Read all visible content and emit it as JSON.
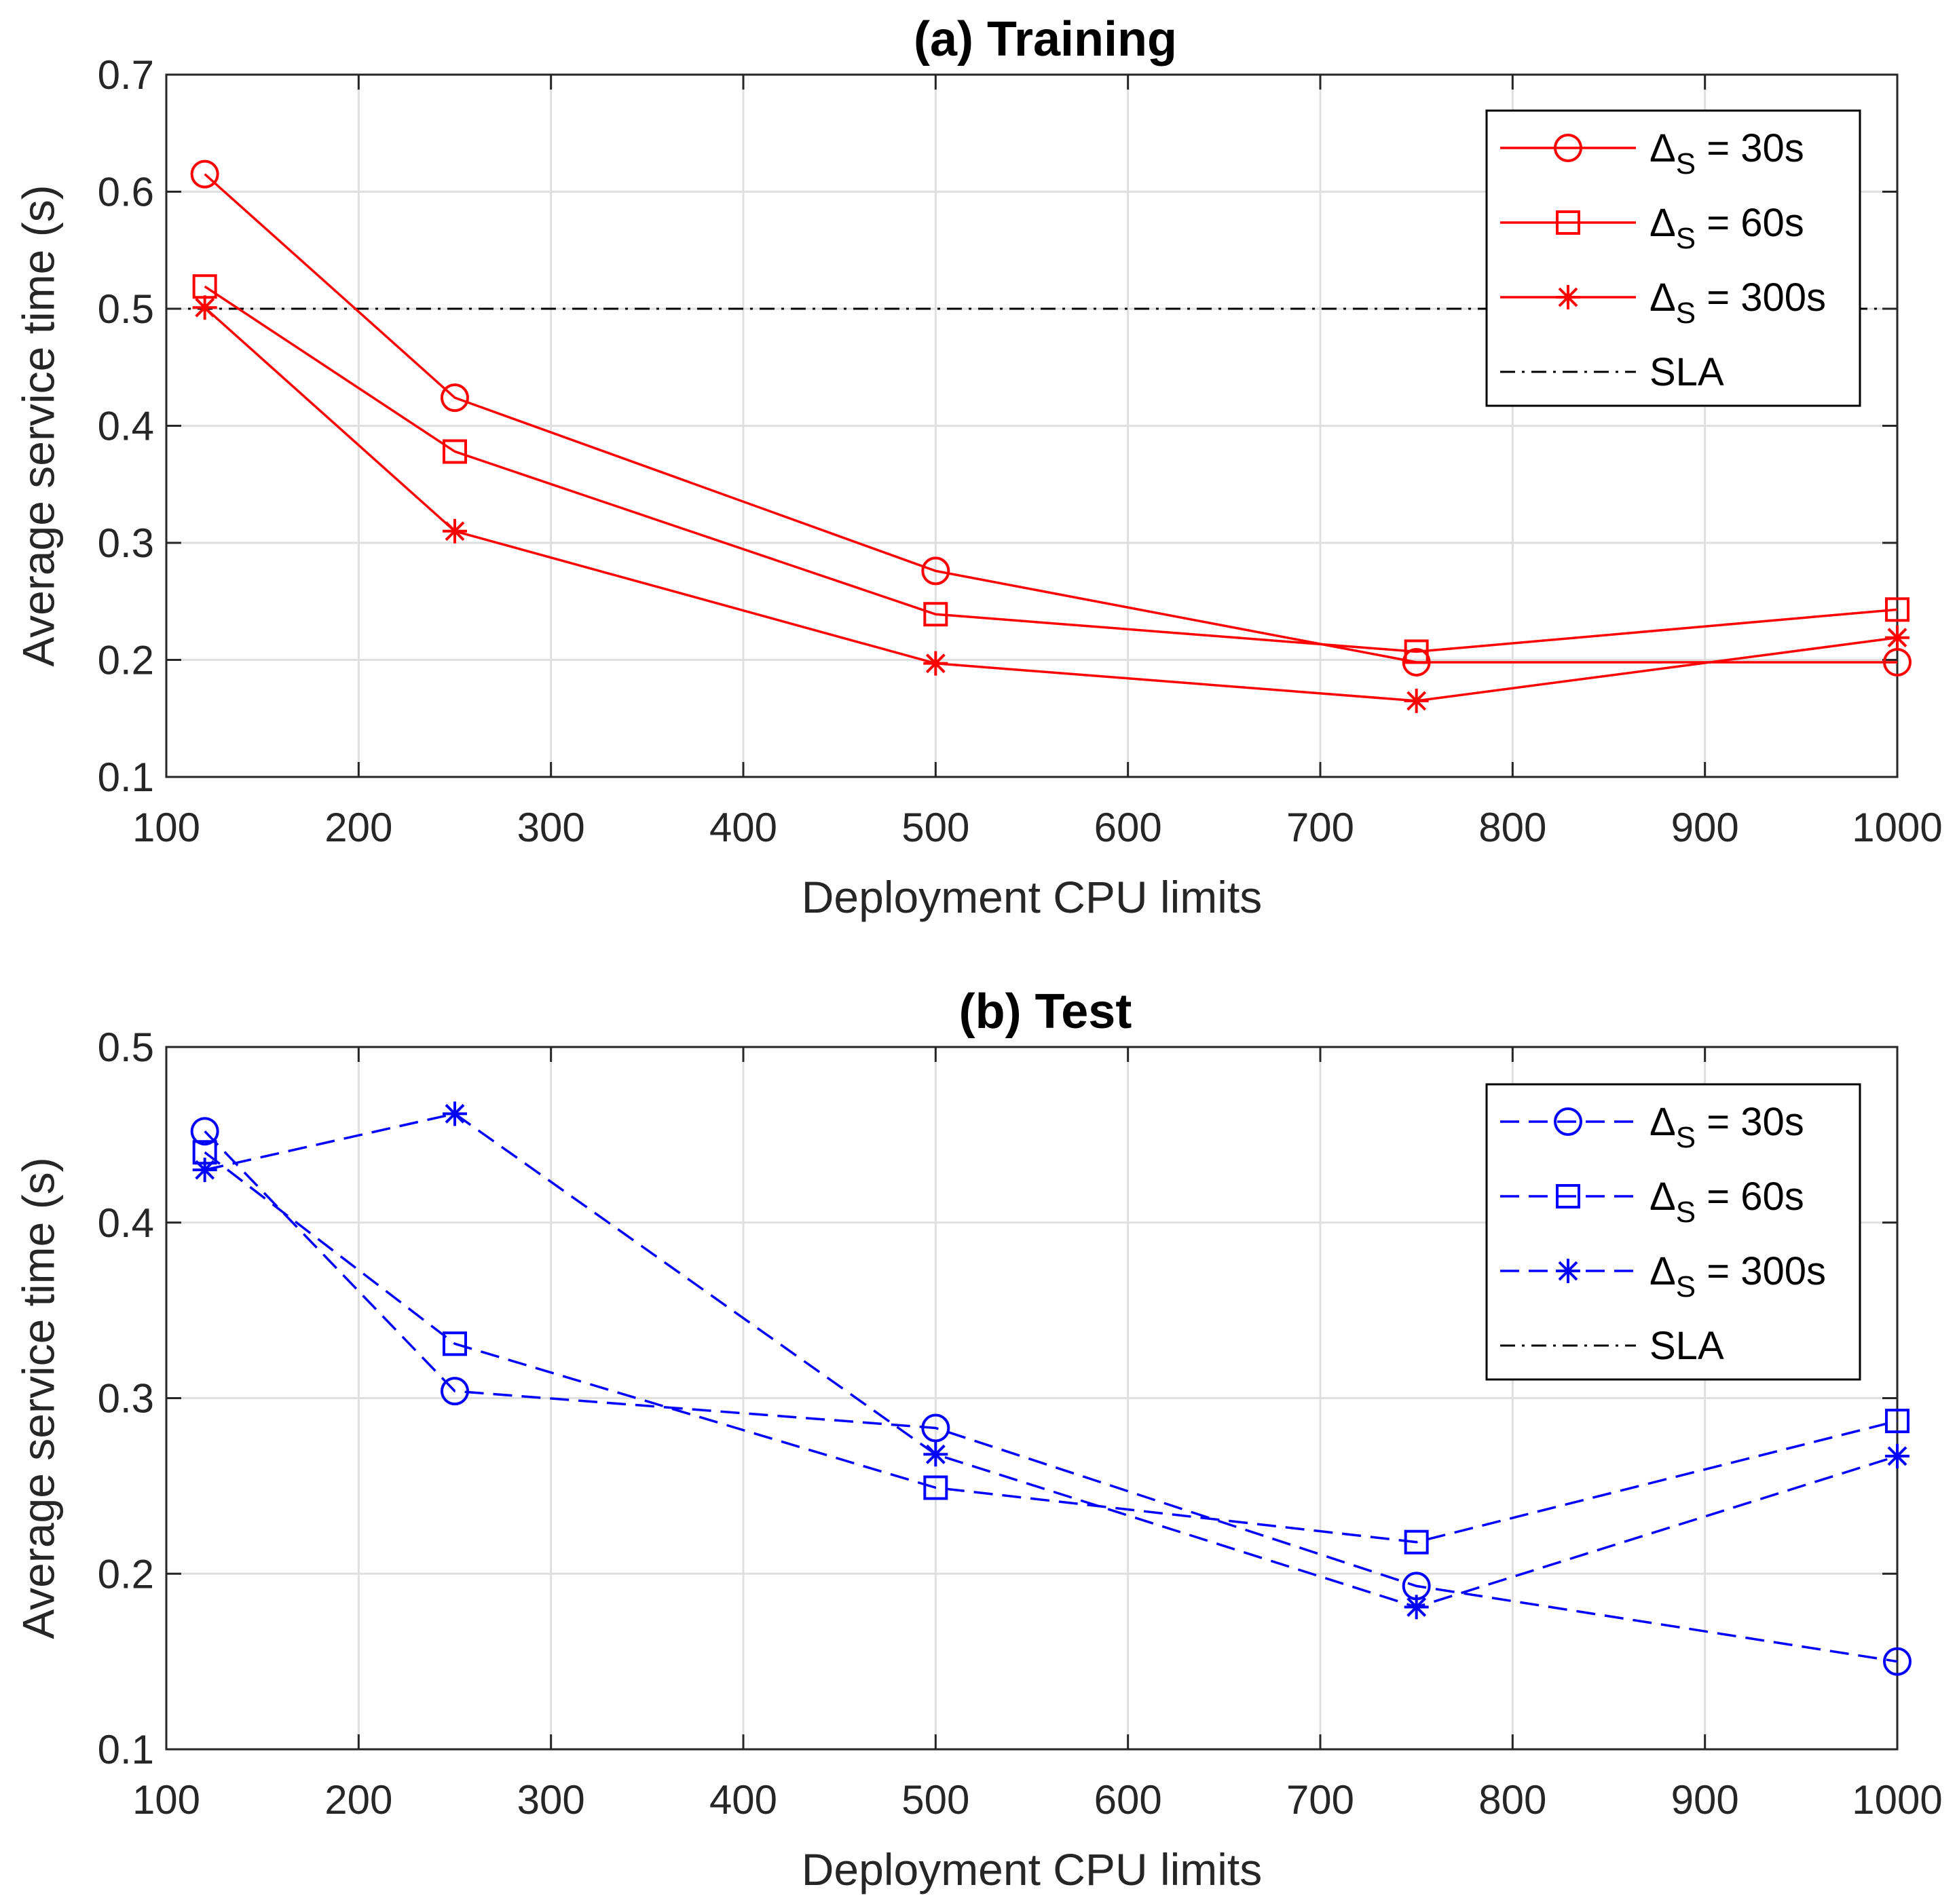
{
  "chart_data": [
    {
      "type": "line",
      "title": "(a) Training",
      "xlabel": "Deployment CPU limits",
      "ylabel": "Average service time (s)",
      "xlim": [
        100,
        1000
      ],
      "ylim": [
        0.1,
        0.7
      ],
      "xticks": [
        "100",
        "200",
        "300",
        "400",
        "500",
        "600",
        "700",
        "800",
        "900",
        "1000"
      ],
      "yticks": [
        "0.1",
        "0.2",
        "0.3",
        "0.4",
        "0.5",
        "0.6",
        "0.7"
      ],
      "grid": true,
      "legend_position": "top-right",
      "x": [
        120,
        250,
        500,
        750,
        1000
      ],
      "color": "#ff0000",
      "line_style": "solid",
      "series": [
        {
          "name": "Δ_S = 30s",
          "delta": "Δ",
          "sub": "S",
          "rest": " = 30s",
          "marker": "circle",
          "values": [
            0.615,
            0.424,
            0.276,
            0.198,
            0.198
          ]
        },
        {
          "name": "Δ_S = 60s",
          "delta": "Δ",
          "sub": "S",
          "rest": " = 60s",
          "marker": "square",
          "values": [
            0.519,
            0.378,
            0.239,
            0.207,
            0.243
          ]
        },
        {
          "name": "Δ_S = 300s",
          "delta": "Δ",
          "sub": "S",
          "rest": " = 300s",
          "marker": "star",
          "values": [
            0.501,
            0.31,
            0.197,
            0.165,
            0.219
          ]
        }
      ],
      "sla": {
        "name": "SLA",
        "value": 0.5,
        "color": "#000000"
      }
    },
    {
      "type": "line",
      "title": "(b) Test",
      "xlabel": "Deployment CPU limits",
      "ylabel": "Average service time (s)",
      "xlim": [
        100,
        1000
      ],
      "ylim": [
        0.1,
        0.5
      ],
      "xticks": [
        "100",
        "200",
        "300",
        "400",
        "500",
        "600",
        "700",
        "800",
        "900",
        "1000"
      ],
      "yticks": [
        "0.1",
        "0.2",
        "0.3",
        "0.4",
        "0.5"
      ],
      "grid": true,
      "legend_position": "top-right",
      "x": [
        120,
        250,
        500,
        750,
        1000
      ],
      "color": "#0000ff",
      "line_style": "dashed",
      "series": [
        {
          "name": "Δ_S = 30s",
          "delta": "Δ",
          "sub": "S",
          "rest": " = 30s",
          "marker": "circle",
          "values": [
            0.452,
            0.304,
            0.283,
            0.193,
            0.15
          ]
        },
        {
          "name": "Δ_S = 60s",
          "delta": "Δ",
          "sub": "S",
          "rest": " = 60s",
          "marker": "square",
          "values": [
            0.44,
            0.331,
            0.249,
            0.218,
            0.287
          ]
        },
        {
          "name": "Δ_S = 300s",
          "delta": "Δ",
          "sub": "S",
          "rest": " = 300s",
          "marker": "star",
          "values": [
            0.43,
            0.462,
            0.268,
            0.181,
            0.267
          ]
        }
      ],
      "sla": {
        "name": "SLA",
        "value": 0.5,
        "color": "#000000"
      }
    }
  ]
}
